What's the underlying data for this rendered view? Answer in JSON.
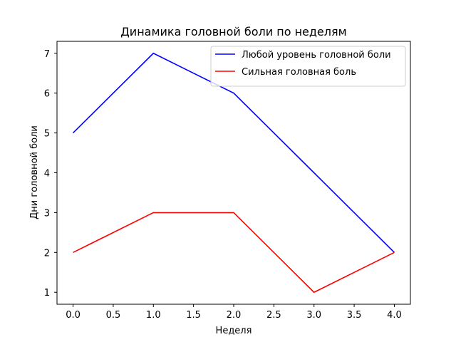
{
  "chart_data": {
    "type": "line",
    "title": "Динамика головной боли по неделям",
    "xlabel": "Неделя",
    "ylabel": "Дни головной боли",
    "x": [
      0,
      1,
      2,
      3,
      4
    ],
    "xlim": [
      -0.2,
      4.2
    ],
    "ylim": [
      0.7,
      7.3
    ],
    "xticks": [
      "0.0",
      "0.5",
      "1.0",
      "1.5",
      "2.0",
      "2.5",
      "3.0",
      "3.5",
      "4.0"
    ],
    "yticks": [
      "1",
      "2",
      "3",
      "4",
      "5",
      "6",
      "7"
    ],
    "grid": false,
    "legend_position": "top-right",
    "series": [
      {
        "name": "Любой уровень головной боли",
        "color": "#0000ff",
        "values": [
          5,
          7,
          6,
          4,
          2
        ]
      },
      {
        "name": "Сильная головная боль",
        "color": "#ff0000",
        "values": [
          2,
          3,
          3,
          1,
          2
        ]
      }
    ]
  }
}
